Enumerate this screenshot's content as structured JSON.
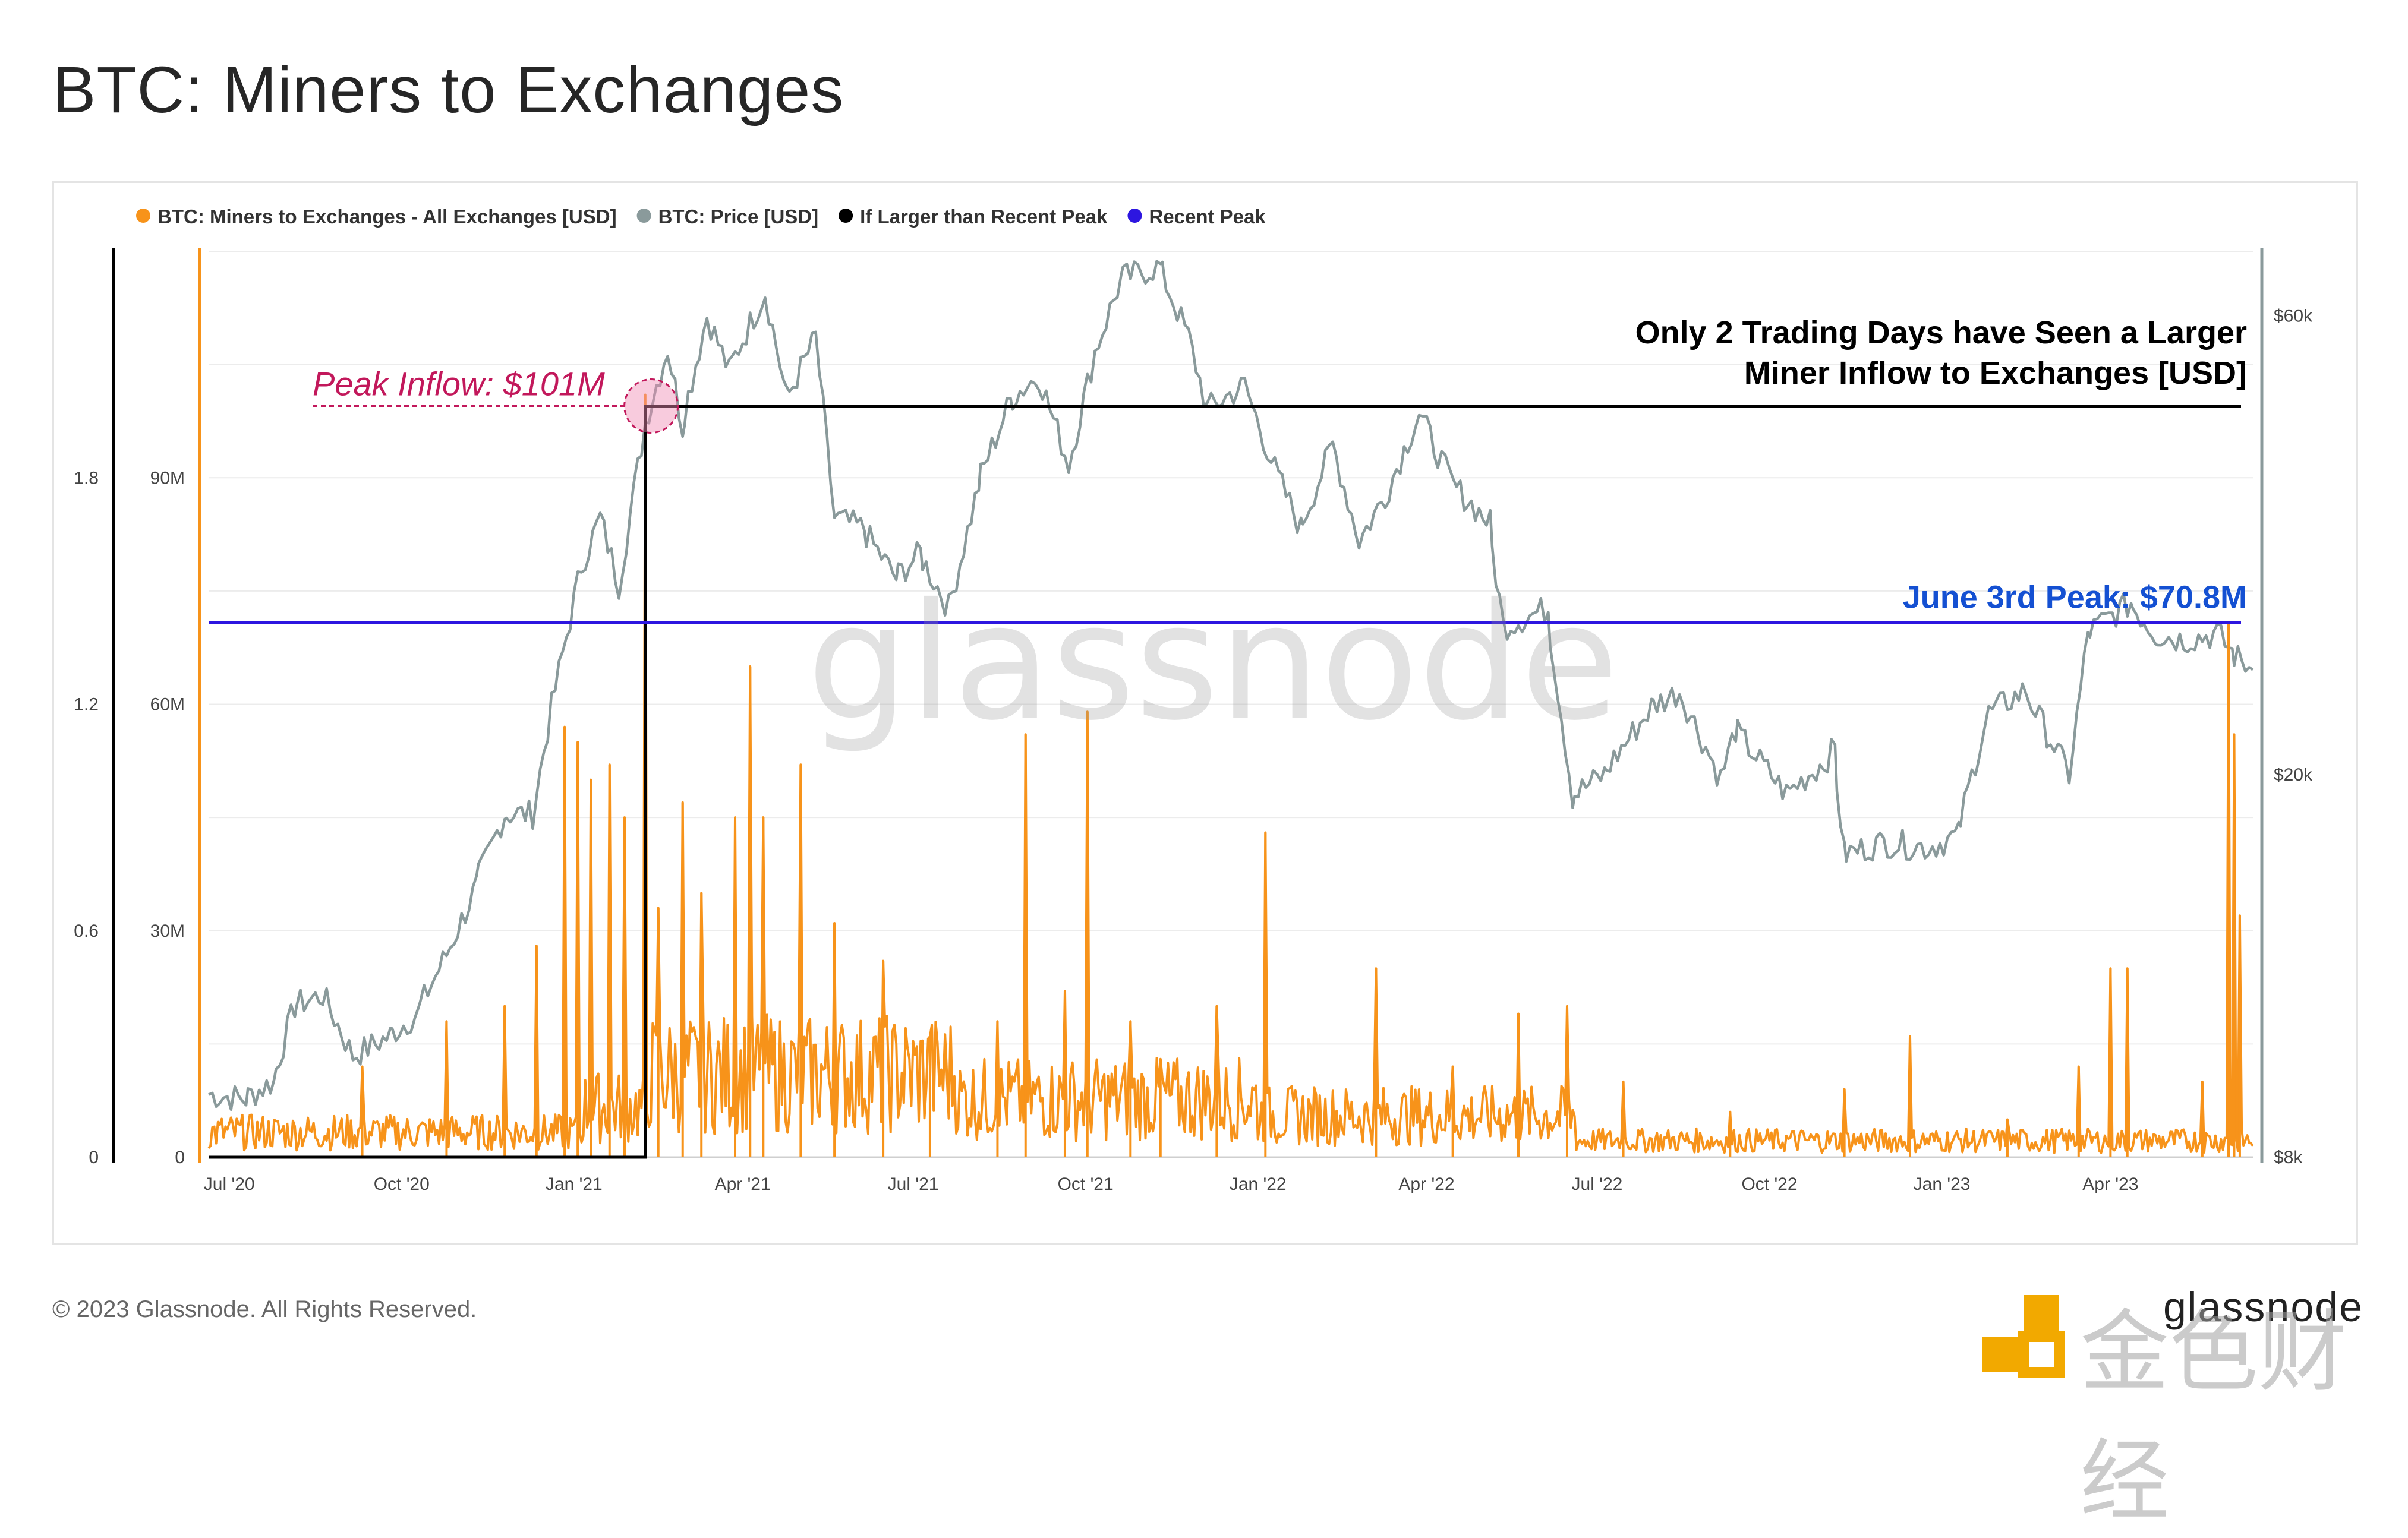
{
  "page": {
    "title": "BTC: Miners to Exchanges",
    "copyright": "© 2023 Glassnode. All Rights Reserved.",
    "brand": "glassnode",
    "watermark": "glassnode",
    "corner_watermark": "金色财经"
  },
  "colors": {
    "inflow": "#f7931a",
    "price": "#8a9a9b",
    "larger_than_peak": "#000000",
    "recent_peak": "#2d16e0",
    "peak_annotation": "#c2185b",
    "june_annotation": "#1450d2"
  },
  "chart_data": {
    "type": "line",
    "title": "BTC: Miners to Exchanges",
    "legend_position": "top-left",
    "grid": true,
    "legend": [
      {
        "name": "BTC: Miners to Exchanges - All Exchanges [USD]",
        "color": "#f7931a"
      },
      {
        "name": "BTC: Price [USD]",
        "color": "#8a9a9b"
      },
      {
        "name": "If Larger than Recent Peak",
        "color": "#000000"
      },
      {
        "name": "Recent Peak",
        "color": "#2d16e0"
      }
    ],
    "x_ticks": [
      "Jul '20",
      "Oct '20",
      "Jan '21",
      "Apr '21",
      "Jul '21",
      "Oct '21",
      "Jan '22",
      "Apr '22",
      "Jul '22",
      "Oct '22",
      "Jan '23",
      "Apr '23"
    ],
    "x_range": [
      "2020-06-20",
      "2023-06-16"
    ],
    "y_left_outer": {
      "ticks": [
        "0",
        "0.6",
        "1.2",
        "1.8"
      ],
      "range": [
        0,
        2.4
      ]
    },
    "y_left": {
      "ticks": [
        "0",
        "30M",
        "60M",
        "90M"
      ],
      "range": [
        0,
        120000000
      ]
    },
    "y_right": {
      "ticks": [
        "$8k",
        "$20k",
        "$60k"
      ],
      "scale": "log",
      "range": [
        8000,
        70000
      ]
    },
    "annotations": {
      "peak_inflow": "Peak Inflow: $101M",
      "trading_days_line1": "Only 2 Trading Days have Seen a Larger",
      "trading_days_line2": "Miner Inflow to Exchanges [USD]",
      "june_peak": "June 3rd Peak: $70.8M"
    },
    "recent_peak_value": 70800000,
    "larger_than_peak_level": 1.99,
    "larger_than_peak_step_date": "2021-02-08",
    "peak_inflow_date": "2021-02-08",
    "peak_inflow_value": 101000000,
    "price_series": [
      [
        "2020-06-20",
        9300
      ],
      [
        "2020-07-10",
        9200
      ],
      [
        "2020-07-25",
        9600
      ],
      [
        "2020-08-05",
        11500
      ],
      [
        "2020-08-20",
        11800
      ],
      [
        "2020-09-05",
        10200
      ],
      [
        "2020-09-25",
        10700
      ],
      [
        "2020-10-10",
        11300
      ],
      [
        "2020-10-25",
        13000
      ],
      [
        "2020-11-10",
        15300
      ],
      [
        "2020-11-25",
        18200
      ],
      [
        "2020-12-10",
        18200
      ],
      [
        "2020-12-20",
        23500
      ],
      [
        "2021-01-05",
        33000
      ],
      [
        "2021-01-15",
        37000
      ],
      [
        "2021-01-25",
        31500
      ],
      [
        "2021-02-08",
        46500
      ],
      [
        "2021-02-20",
        55500
      ],
      [
        "2021-02-28",
        46000
      ],
      [
        "2021-03-13",
        60000
      ],
      [
        "2021-03-25",
        52500
      ],
      [
        "2021-04-13",
        63500
      ],
      [
        "2021-04-25",
        49000
      ],
      [
        "2021-05-10",
        57000
      ],
      [
        "2021-05-20",
        37000
      ],
      [
        "2021-06-05",
        36000
      ],
      [
        "2021-06-22",
        32000
      ],
      [
        "2021-07-05",
        34000
      ],
      [
        "2021-07-20",
        29800
      ],
      [
        "2021-08-05",
        40000
      ],
      [
        "2021-08-22",
        49000
      ],
      [
        "2021-09-06",
        52000
      ],
      [
        "2021-09-22",
        42000
      ],
      [
        "2021-10-06",
        55000
      ],
      [
        "2021-10-20",
        65500
      ],
      [
        "2021-11-10",
        67500
      ],
      [
        "2021-11-25",
        57000
      ],
      [
        "2021-12-05",
        48000
      ],
      [
        "2021-12-25",
        50800
      ],
      [
        "2022-01-10",
        41500
      ],
      [
        "2022-01-24",
        36000
      ],
      [
        "2022-02-10",
        44000
      ],
      [
        "2022-02-24",
        35000
      ],
      [
        "2022-03-10",
        39000
      ],
      [
        "2022-03-28",
        47500
      ],
      [
        "2022-04-15",
        40000
      ],
      [
        "2022-05-05",
        36500
      ],
      [
        "2022-05-12",
        28500
      ],
      [
        "2022-06-05",
        29800
      ],
      [
        "2022-06-18",
        19000
      ],
      [
        "2022-07-05",
        20000
      ],
      [
        "2022-07-30",
        23500
      ],
      [
        "2022-08-14",
        24400
      ],
      [
        "2022-09-05",
        19800
      ],
      [
        "2022-09-13",
        22300
      ],
      [
        "2022-10-10",
        19100
      ],
      [
        "2022-10-30",
        20600
      ],
      [
        "2022-11-05",
        21300
      ],
      [
        "2022-11-10",
        16500
      ],
      [
        "2022-12-01",
        17000
      ],
      [
        "2022-12-25",
        16800
      ],
      [
        "2023-01-10",
        17300
      ],
      [
        "2023-01-25",
        23000
      ],
      [
        "2023-02-15",
        24500
      ],
      [
        "2023-03-10",
        20000
      ],
      [
        "2023-03-20",
        28000
      ],
      [
        "2023-04-12",
        30200
      ],
      [
        "2023-04-25",
        28000
      ],
      [
        "2023-05-10",
        27600
      ],
      [
        "2023-05-28",
        28000
      ],
      [
        "2023-06-05",
        26800
      ],
      [
        "2023-06-16",
        25700
      ]
    ],
    "inflow_spikes": [
      [
        "2020-09-10",
        12000000
      ],
      [
        "2020-10-25",
        18000000
      ],
      [
        "2020-11-25",
        20000000
      ],
      [
        "2020-12-12",
        28000000
      ],
      [
        "2020-12-27",
        57000000
      ],
      [
        "2021-01-03",
        55000000
      ],
      [
        "2021-01-10",
        50000000
      ],
      [
        "2021-01-20",
        52000000
      ],
      [
        "2021-01-28",
        45000000
      ],
      [
        "2021-02-08",
        101000000
      ],
      [
        "2021-02-15",
        33000000
      ],
      [
        "2021-02-28",
        47000000
      ],
      [
        "2021-03-10",
        35000000
      ],
      [
        "2021-03-28",
        45000000
      ],
      [
        "2021-04-05",
        65000000
      ],
      [
        "2021-04-12",
        45000000
      ],
      [
        "2021-05-02",
        52000000
      ],
      [
        "2021-05-20",
        31000000
      ],
      [
        "2021-06-15",
        26000000
      ],
      [
        "2021-07-10",
        16000000
      ],
      [
        "2021-08-15",
        18000000
      ],
      [
        "2021-08-30",
        56000000
      ],
      [
        "2021-09-20",
        22000000
      ],
      [
        "2021-10-02",
        59000000
      ],
      [
        "2021-10-25",
        18000000
      ],
      [
        "2021-11-10",
        13000000
      ],
      [
        "2021-12-10",
        20000000
      ],
      [
        "2022-01-05",
        43000000
      ],
      [
        "2022-03-05",
        25000000
      ],
      [
        "2022-04-15",
        12000000
      ],
      [
        "2022-05-20",
        19000000
      ],
      [
        "2022-06-15",
        20000000
      ],
      [
        "2022-07-15",
        10000000
      ],
      [
        "2022-09-10",
        6000000
      ],
      [
        "2022-11-10",
        9000000
      ],
      [
        "2022-12-15",
        16000000
      ],
      [
        "2023-02-05",
        5000000
      ],
      [
        "2023-03-15",
        12000000
      ],
      [
        "2023-04-01",
        25000000
      ],
      [
        "2023-04-10",
        25000000
      ],
      [
        "2023-05-20",
        10000000
      ],
      [
        "2023-06-03",
        70800000
      ],
      [
        "2023-06-06",
        56000000
      ],
      [
        "2023-06-09",
        32000000
      ]
    ]
  }
}
